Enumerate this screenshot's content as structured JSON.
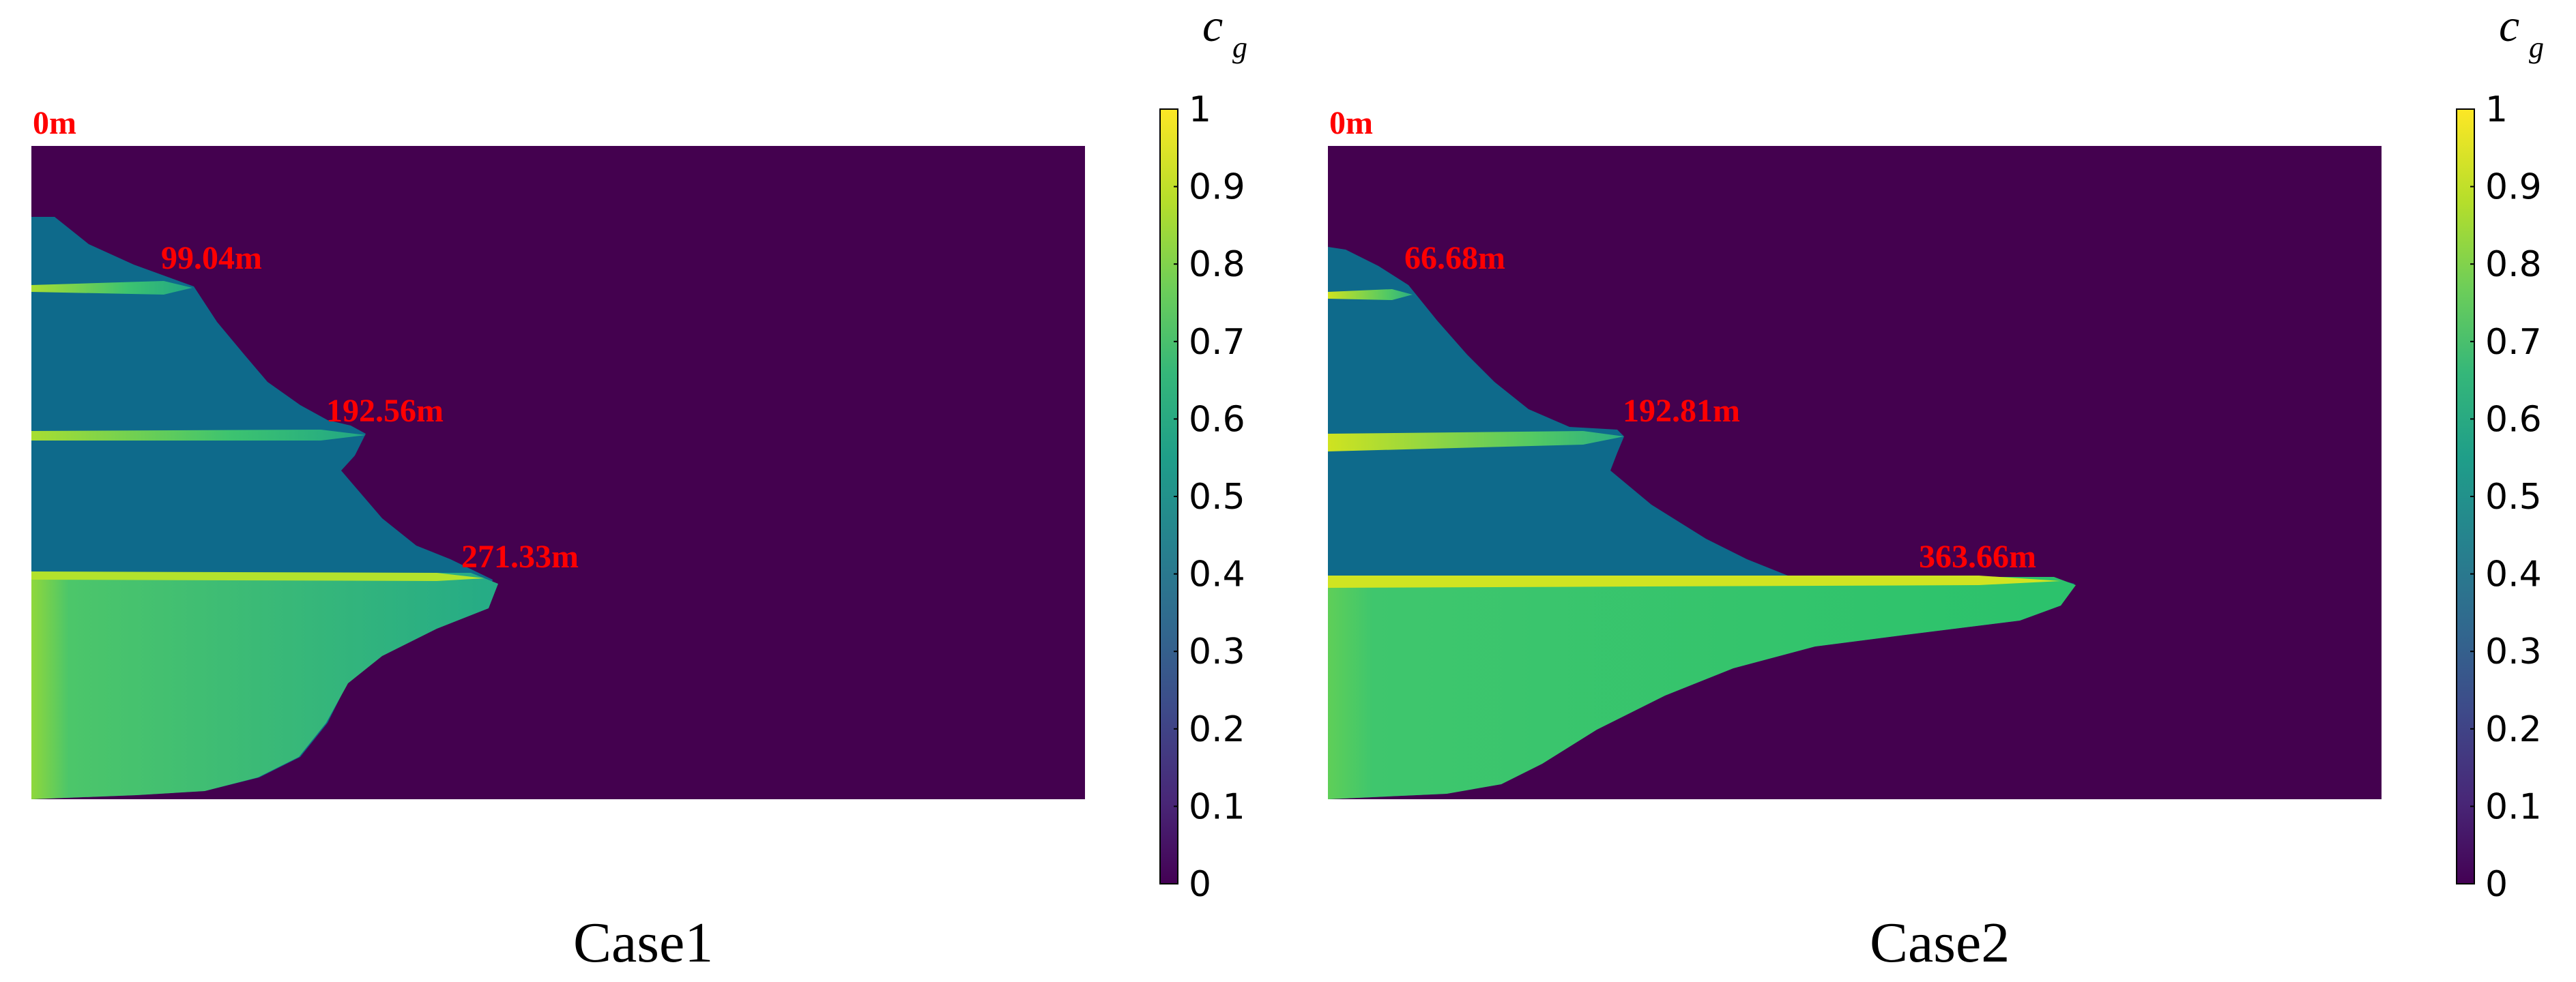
{
  "colors": {
    "background": "#44014f",
    "tongue_base": "#0d6a8a",
    "channel": "#2ec46b",
    "channel_bright": "#d5e51e",
    "annotation": "#ff0000",
    "colormap": [
      "#440154",
      "#482878",
      "#3e4989",
      "#31688e",
      "#26828e",
      "#1f9e89",
      "#35b779",
      "#6ece58",
      "#b5de2b",
      "#fde725"
    ]
  },
  "chart_data": [
    {
      "type": "heatmap",
      "caption": "Case1",
      "origin_label": "0m",
      "colorbar": {
        "title": "c",
        "subscript": "g",
        "min": 0,
        "max": 1,
        "ticks": [
          "0",
          "0.1",
          "0.2",
          "0.3",
          "0.4",
          "0.5",
          "0.6",
          "0.7",
          "0.8",
          "0.9",
          "1"
        ]
      },
      "fronts": [
        {
          "label": "99.04m",
          "value_m": 99.04
        },
        {
          "label": "192.56m",
          "value_m": 192.56
        },
        {
          "label": "271.33m",
          "value_m": 271.33
        }
      ]
    },
    {
      "type": "heatmap",
      "caption": "Case2",
      "origin_label": "0m",
      "colorbar": {
        "title": "c",
        "subscript": "g",
        "min": 0,
        "max": 1,
        "ticks": [
          "0",
          "0.1",
          "0.2",
          "0.3",
          "0.4",
          "0.5",
          "0.6",
          "0.7",
          "0.8",
          "0.9",
          "1"
        ]
      },
      "fronts": [
        {
          "label": "66.68m",
          "value_m": 66.68
        },
        {
          "label": "192.81m",
          "value_m": 192.81
        },
        {
          "label": "363.66m",
          "value_m": 363.66
        }
      ]
    }
  ]
}
